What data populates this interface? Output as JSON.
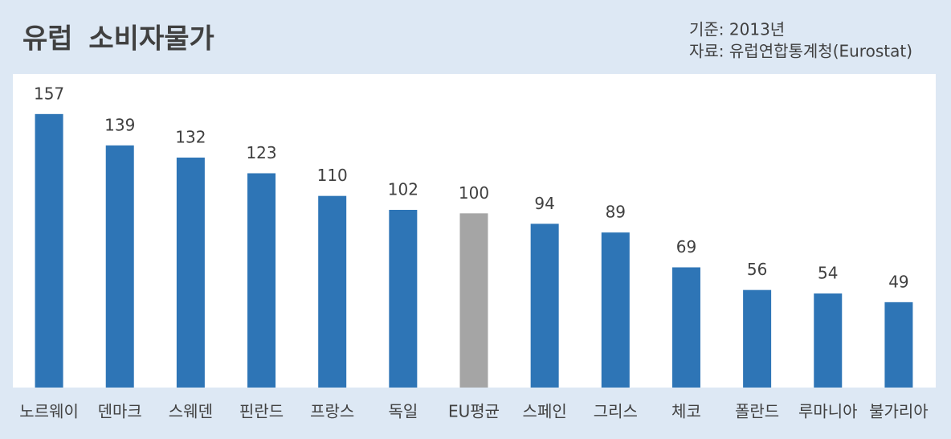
{
  "chart_data": {
    "type": "bar",
    "title": "유럽 소비자물가",
    "notes": [
      "기준: 2013년",
      "자료: 유럽연합통계청(Eurostat)"
    ],
    "categories": [
      "노르웨이",
      "덴마크",
      "스웨덴",
      "핀란드",
      "프랑스",
      "독일",
      "EU평균",
      "스페인",
      "그리스",
      "체코",
      "폴란드",
      "루마니아",
      "불가리아"
    ],
    "values": [
      157,
      139,
      132,
      123,
      110,
      102,
      100,
      94,
      89,
      69,
      56,
      54,
      49
    ],
    "colors": [
      "#2e75b6",
      "#2e75b6",
      "#2e75b6",
      "#2e75b6",
      "#2e75b6",
      "#2e75b6",
      "#a5a5a5",
      "#2e75b6",
      "#2e75b6",
      "#2e75b6",
      "#2e75b6",
      "#2e75b6",
      "#2e75b6"
    ],
    "ylim": [
      0,
      180
    ],
    "grid": false
  }
}
